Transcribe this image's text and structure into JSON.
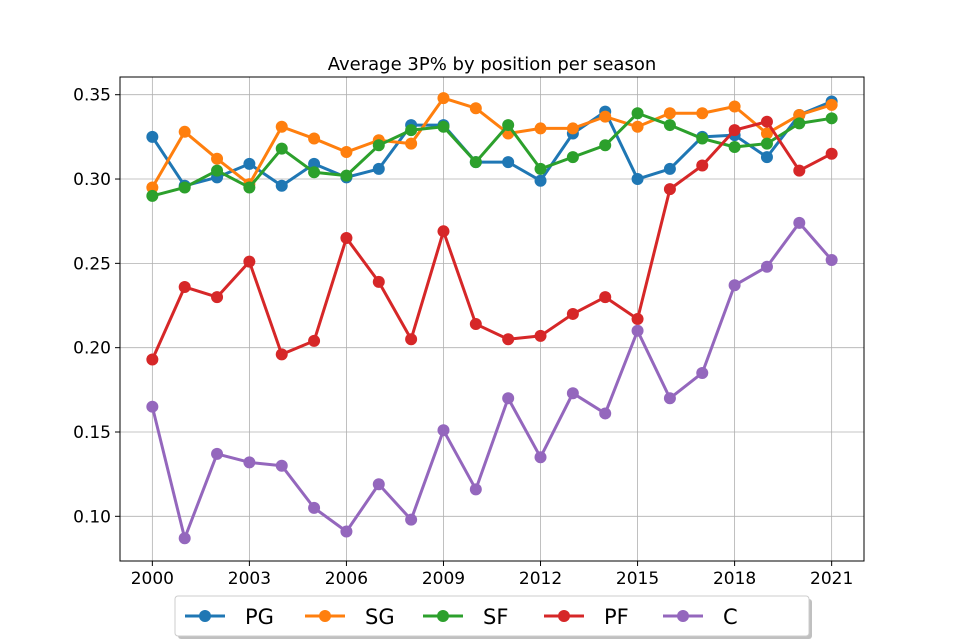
{
  "chart_data": {
    "type": "line",
    "title": "Average 3P% by position per season",
    "xlabel": "",
    "ylabel": "",
    "x": [
      2000,
      2001,
      2002,
      2003,
      2004,
      2005,
      2006,
      2007,
      2008,
      2009,
      2010,
      2011,
      2012,
      2013,
      2014,
      2015,
      2016,
      2017,
      2018,
      2019,
      2020,
      2021
    ],
    "xticks": [
      2000,
      2003,
      2006,
      2009,
      2012,
      2015,
      2018,
      2021
    ],
    "xlim": [
      1999,
      2022
    ],
    "yticks": [
      0.1,
      0.15,
      0.2,
      0.25,
      0.3,
      0.35
    ],
    "ylim": [
      0.0735,
      0.3605
    ],
    "grid": true,
    "legend_position": "bottom-center",
    "series": [
      {
        "name": "PG",
        "color": "#1f77b4",
        "values": [
          0.325,
          0.296,
          0.301,
          0.309,
          0.296,
          0.309,
          0.301,
          0.306,
          0.332,
          0.332,
          0.31,
          0.31,
          0.299,
          0.327,
          0.34,
          0.3,
          0.306,
          0.325,
          0.326,
          0.313,
          0.338,
          0.346
        ]
      },
      {
        "name": "SG",
        "color": "#ff7f0e",
        "values": [
          0.295,
          0.328,
          0.312,
          0.297,
          0.331,
          0.324,
          0.316,
          0.323,
          0.321,
          0.348,
          0.342,
          0.327,
          0.33,
          0.33,
          0.337,
          0.331,
          0.339,
          0.339,
          0.343,
          0.327,
          0.338,
          0.344
        ]
      },
      {
        "name": "SF",
        "color": "#2ca02c",
        "values": [
          0.29,
          0.295,
          0.305,
          0.295,
          0.318,
          0.304,
          0.302,
          0.32,
          0.329,
          0.331,
          0.31,
          0.332,
          0.306,
          0.313,
          0.32,
          0.339,
          0.332,
          0.324,
          0.319,
          0.321,
          0.333,
          0.336
        ]
      },
      {
        "name": "PF",
        "color": "#d62728",
        "values": [
          0.193,
          0.236,
          0.23,
          0.251,
          0.196,
          0.204,
          0.265,
          0.239,
          0.205,
          0.269,
          0.214,
          0.205,
          0.207,
          0.22,
          0.23,
          0.217,
          0.294,
          0.308,
          0.329,
          0.334,
          0.305,
          0.315
        ]
      },
      {
        "name": "C",
        "color": "#9467bd",
        "values": [
          0.165,
          0.087,
          0.137,
          0.132,
          0.13,
          0.105,
          0.091,
          0.119,
          0.098,
          0.151,
          0.116,
          0.17,
          0.135,
          0.173,
          0.161,
          0.21,
          0.17,
          0.185,
          0.237,
          0.248,
          0.274,
          0.252
        ]
      }
    ]
  }
}
